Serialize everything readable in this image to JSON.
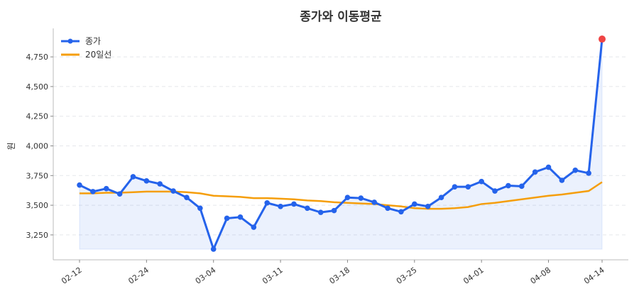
{
  "chart_data": {
    "type": "line",
    "title": "종가와 이동평균",
    "xlabel": "",
    "ylabel": "원",
    "ylim": [
      3040,
      4990
    ],
    "yticks": [
      3250,
      3500,
      3750,
      4000,
      4250,
      4500,
      4750
    ],
    "ytick_labels": [
      "3,250",
      "3,500",
      "3,750",
      "4,000",
      "4,250",
      "4,500",
      "4,750"
    ],
    "xtick_index": [
      0,
      5,
      10,
      15,
      20,
      25,
      30,
      35,
      39
    ],
    "xtick_labels": [
      "02-12",
      "02-24",
      "03-04",
      "03-11",
      "03-18",
      "03-25",
      "04-01",
      "04-08",
      "04-14"
    ],
    "grid": "horizontal dashed",
    "legend_position": "top-left",
    "series": [
      {
        "name": "종가",
        "color": "#2563eb",
        "highlight_last_color": "#ef4444",
        "values": [
          3670,
          3615,
          3640,
          3595,
          3740,
          3705,
          3680,
          3620,
          3565,
          3475,
          3130,
          3390,
          3400,
          3315,
          3520,
          3490,
          3510,
          3475,
          3440,
          3455,
          3565,
          3560,
          3525,
          3475,
          3445,
          3510,
          3490,
          3565,
          3655,
          3655,
          3700,
          3620,
          3665,
          3660,
          3780,
          3820,
          3710,
          3795,
          3770,
          4900
        ]
      },
      {
        "name": "20일선",
        "color": "#f59e0b",
        "values": [
          3600,
          3600,
          3605,
          3605,
          3610,
          3615,
          3615,
          3615,
          3610,
          3600,
          3580,
          3575,
          3570,
          3560,
          3560,
          3555,
          3550,
          3540,
          3535,
          3525,
          3520,
          3515,
          3510,
          3500,
          3490,
          3475,
          3470,
          3470,
          3475,
          3485,
          3510,
          3520,
          3535,
          3550,
          3565,
          3580,
          3590,
          3605,
          3620,
          3695
        ]
      }
    ]
  }
}
